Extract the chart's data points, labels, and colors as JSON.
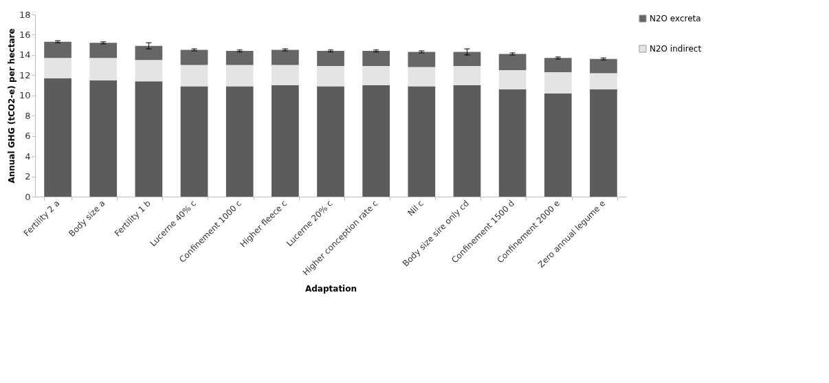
{
  "chart_data": {
    "type": "bar",
    "stacked": true,
    "xlabel": "Adaptation",
    "ylabel": "Annual GHG  (tCO2-e) per hectare",
    "categories": [
      "Fertility 2 a",
      "Body size a",
      "Fertility 1 b",
      "Lucerne 40% c",
      "Confinement 1000 c",
      "Higher fleece c",
      "Lucerne 20% c",
      "Higher conception rate c",
      "Nil c",
      "Body size sire only cd",
      "Confinement 1500 d",
      "Confinement 2000 e",
      "Zero annual legume e"
    ],
    "series": [
      {
        "color": "#5c5c5c",
        "values": [
          11.7,
          11.5,
          11.4,
          10.9,
          10.9,
          11.0,
          10.9,
          11.0,
          10.9,
          11.0,
          10.6,
          10.2,
          10.6
        ]
      },
      {
        "name": "N2O indirect",
        "color": "#e4e4e4",
        "values": [
          2.0,
          2.2,
          2.1,
          2.1,
          2.1,
          2.0,
          2.0,
          1.9,
          1.9,
          1.9,
          1.9,
          2.1,
          1.6
        ]
      },
      {
        "name": "N2O excreta",
        "color": "#666666",
        "values": [
          1.6,
          1.5,
          1.4,
          1.5,
          1.4,
          1.5,
          1.5,
          1.5,
          1.5,
          1.4,
          1.6,
          1.4,
          1.4
        ],
        "errors": [
          0.1,
          0.1,
          0.3,
          0.1,
          0.1,
          0.1,
          0.1,
          0.1,
          0.1,
          0.3,
          0.1,
          0.1,
          0.1
        ]
      }
    ],
    "ylim": [
      0,
      18
    ],
    "yticks": [
      0,
      2,
      4,
      6,
      8,
      10,
      12,
      14,
      16,
      18
    ],
    "grid": false,
    "legend": "right"
  }
}
